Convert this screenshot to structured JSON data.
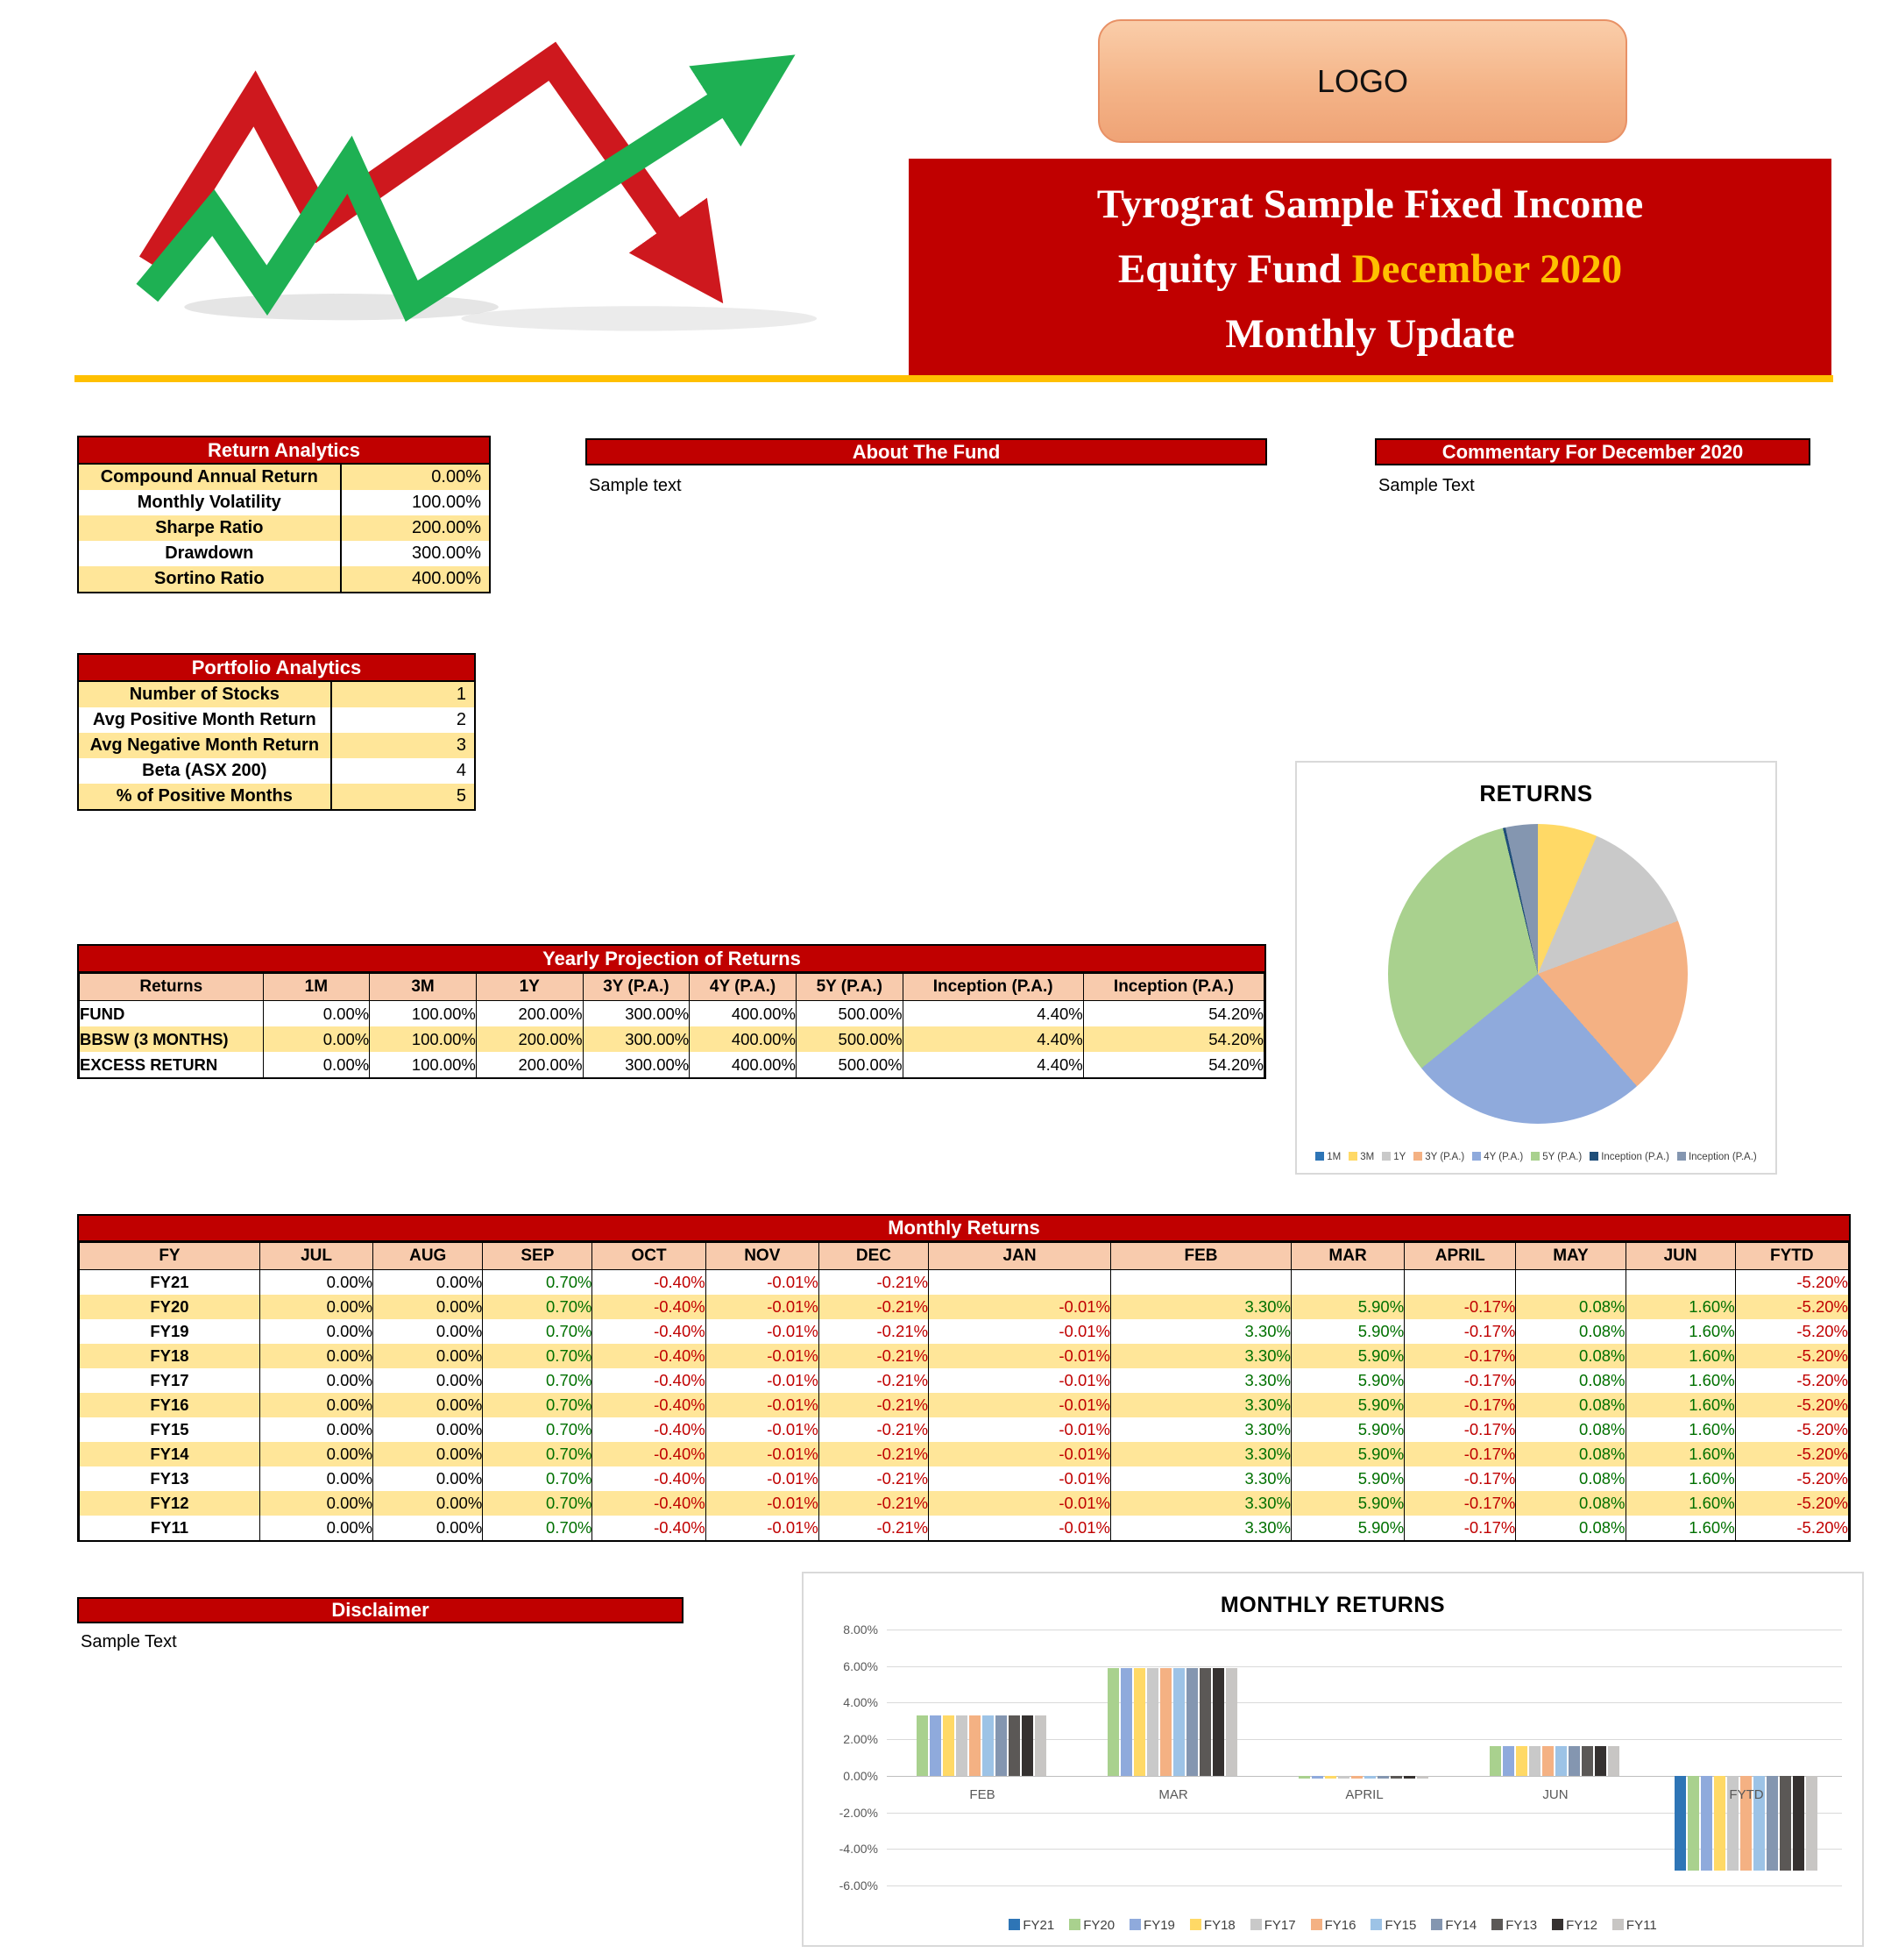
{
  "header": {
    "logo_label": "LOGO",
    "title_line1": "Tyrograt Sample Fixed Income",
    "title_line2_white": "Equity Fund",
    "title_line2_gold": "December 2020",
    "title_line3": "Monthly Update"
  },
  "colors": {
    "accent_red": "#C00000",
    "gold": "#FFC000",
    "row_yellow": "#FFE699",
    "header_peach": "#F8CBAD",
    "positive_value": "#007000",
    "negative_value": "#C00000",
    "logo_fill": "#F4B488",
    "logo_border": "#E89166"
  },
  "return_analytics": {
    "title": "Return Analytics",
    "rows": [
      [
        "Compound Annual Return",
        "0.00%"
      ],
      [
        "Monthly Volatility",
        "100.00%"
      ],
      [
        "Sharpe Ratio",
        "200.00%"
      ],
      [
        "Drawdown",
        "300.00%"
      ],
      [
        "Sortino Ratio",
        "400.00%"
      ]
    ]
  },
  "about": {
    "title": "About The Fund",
    "body": "Sample text"
  },
  "commentary": {
    "title": "Commentary For December 2020",
    "body": "Sample Text"
  },
  "portfolio_analytics": {
    "title": "Portfolio Analytics",
    "rows": [
      [
        "Number of Stocks",
        "1"
      ],
      [
        "Avg Positive Month Return",
        "2"
      ],
      [
        "Avg Negative Month Return",
        "3"
      ],
      [
        "Beta (ASX 200)",
        "4"
      ],
      [
        "% of Positive Months",
        "5"
      ]
    ]
  },
  "yearly_projection": {
    "title": "Yearly Projection of Returns",
    "columns": [
      "Returns",
      "1M",
      "3M",
      "1Y",
      "3Y (P.A.)",
      "4Y (P.A.)",
      "5Y (P.A.)",
      "Inception (P.A.)",
      "Inception (P.A.)"
    ],
    "rows": [
      {
        "label": "FUND",
        "values": [
          "0.00%",
          "100.00%",
          "200.00%",
          "300.00%",
          "400.00%",
          "500.00%",
          "4.40%",
          "54.20%"
        ]
      },
      {
        "label": "BBSW (3 MONTHS)",
        "values": [
          "0.00%",
          "100.00%",
          "200.00%",
          "300.00%",
          "400.00%",
          "500.00%",
          "4.40%",
          "54.20%"
        ]
      },
      {
        "label": "EXCESS RETURN",
        "values": [
          "0.00%",
          "100.00%",
          "200.00%",
          "300.00%",
          "400.00%",
          "500.00%",
          "4.40%",
          "54.20%"
        ]
      }
    ]
  },
  "monthly_returns_table": {
    "title": "Monthly Returns",
    "columns": [
      "FY",
      "JUL",
      "AUG",
      "SEP",
      "OCT",
      "NOV",
      "DEC",
      "JAN",
      "FEB",
      "MAR",
      "APRIL",
      "MAY",
      "JUN",
      "FYTD"
    ],
    "rows": [
      {
        "fy": "FY21",
        "values": [
          "0.00%",
          "0.00%",
          "0.70%",
          "-0.40%",
          "-0.01%",
          "-0.21%",
          "",
          "",
          "",
          "",
          "",
          "",
          "-5.20%"
        ]
      },
      {
        "fy": "FY20",
        "values": [
          "0.00%",
          "0.00%",
          "0.70%",
          "-0.40%",
          "-0.01%",
          "-0.21%",
          "-0.01%",
          "3.30%",
          "5.90%",
          "-0.17%",
          "0.08%",
          "1.60%",
          "-5.20%"
        ]
      },
      {
        "fy": "FY19",
        "values": [
          "0.00%",
          "0.00%",
          "0.70%",
          "-0.40%",
          "-0.01%",
          "-0.21%",
          "-0.01%",
          "3.30%",
          "5.90%",
          "-0.17%",
          "0.08%",
          "1.60%",
          "-5.20%"
        ]
      },
      {
        "fy": "FY18",
        "values": [
          "0.00%",
          "0.00%",
          "0.70%",
          "-0.40%",
          "-0.01%",
          "-0.21%",
          "-0.01%",
          "3.30%",
          "5.90%",
          "-0.17%",
          "0.08%",
          "1.60%",
          "-5.20%"
        ]
      },
      {
        "fy": "FY17",
        "values": [
          "0.00%",
          "0.00%",
          "0.70%",
          "-0.40%",
          "-0.01%",
          "-0.21%",
          "-0.01%",
          "3.30%",
          "5.90%",
          "-0.17%",
          "0.08%",
          "1.60%",
          "-5.20%"
        ]
      },
      {
        "fy": "FY16",
        "values": [
          "0.00%",
          "0.00%",
          "0.70%",
          "-0.40%",
          "-0.01%",
          "-0.21%",
          "-0.01%",
          "3.30%",
          "5.90%",
          "-0.17%",
          "0.08%",
          "1.60%",
          "-5.20%"
        ]
      },
      {
        "fy": "FY15",
        "values": [
          "0.00%",
          "0.00%",
          "0.70%",
          "-0.40%",
          "-0.01%",
          "-0.21%",
          "-0.01%",
          "3.30%",
          "5.90%",
          "-0.17%",
          "0.08%",
          "1.60%",
          "-5.20%"
        ]
      },
      {
        "fy": "FY14",
        "values": [
          "0.00%",
          "0.00%",
          "0.70%",
          "-0.40%",
          "-0.01%",
          "-0.21%",
          "-0.01%",
          "3.30%",
          "5.90%",
          "-0.17%",
          "0.08%",
          "1.60%",
          "-5.20%"
        ]
      },
      {
        "fy": "FY13",
        "values": [
          "0.00%",
          "0.00%",
          "0.70%",
          "-0.40%",
          "-0.01%",
          "-0.21%",
          "-0.01%",
          "3.30%",
          "5.90%",
          "-0.17%",
          "0.08%",
          "1.60%",
          "-5.20%"
        ]
      },
      {
        "fy": "FY12",
        "values": [
          "0.00%",
          "0.00%",
          "0.70%",
          "-0.40%",
          "-0.01%",
          "-0.21%",
          "-0.01%",
          "3.30%",
          "5.90%",
          "-0.17%",
          "0.08%",
          "1.60%",
          "-5.20%"
        ]
      },
      {
        "fy": "FY11",
        "values": [
          "0.00%",
          "0.00%",
          "0.70%",
          "-0.40%",
          "-0.01%",
          "-0.21%",
          "-0.01%",
          "3.30%",
          "5.90%",
          "-0.17%",
          "0.08%",
          "1.60%",
          "-5.20%"
        ]
      }
    ]
  },
  "disclaimer": {
    "title": "Disclaimer",
    "body": "Sample Text"
  },
  "chart_data": [
    {
      "type": "pie",
      "title": "RETURNS",
      "labels": [
        "1M",
        "3M",
        "1Y",
        "3Y (P.A.)",
        "4Y (P.A.)",
        "5Y (P.A.)",
        "Inception (P.A.)",
        "Inception (P.A.)"
      ],
      "values": [
        0,
        100,
        200,
        300,
        400,
        500,
        4.4,
        54.2
      ],
      "colors": [
        "#2E75B6",
        "#FFD966",
        "#C9C9C9",
        "#F4B183",
        "#8FAADC",
        "#A9D18E",
        "#1F4E79",
        "#8496B0"
      ],
      "legend_position": "bottom"
    },
    {
      "type": "bar",
      "title": "MONTHLY RETURNS",
      "categories": [
        "FEB",
        "MAR",
        "APRIL",
        "JUN",
        "FYTD"
      ],
      "series": [
        {
          "name": "FY21",
          "color": "#2E75B6",
          "values": [
            null,
            null,
            null,
            null,
            -5.2
          ]
        },
        {
          "name": "FY20",
          "color": "#A9D18E",
          "values": [
            3.3,
            5.9,
            -0.17,
            1.6,
            -5.2
          ]
        },
        {
          "name": "FY19",
          "color": "#8FAADC",
          "values": [
            3.3,
            5.9,
            -0.17,
            1.6,
            -5.2
          ]
        },
        {
          "name": "FY18",
          "color": "#FFD966",
          "values": [
            3.3,
            5.9,
            -0.17,
            1.6,
            -5.2
          ]
        },
        {
          "name": "FY17",
          "color": "#C9C9C9",
          "values": [
            3.3,
            5.9,
            -0.17,
            1.6,
            -5.2
          ]
        },
        {
          "name": "FY16",
          "color": "#F4B183",
          "values": [
            3.3,
            5.9,
            -0.17,
            1.6,
            -5.2
          ]
        },
        {
          "name": "FY15",
          "color": "#9DC3E6",
          "values": [
            3.3,
            5.9,
            -0.17,
            1.6,
            -5.2
          ]
        },
        {
          "name": "FY14",
          "color": "#8496B0",
          "values": [
            3.3,
            5.9,
            -0.17,
            1.6,
            -5.2
          ]
        },
        {
          "name": "FY13",
          "color": "#5B5856",
          "values": [
            3.3,
            5.9,
            -0.17,
            1.6,
            -5.2
          ]
        },
        {
          "name": "FY12",
          "color": "#353130",
          "values": [
            3.3,
            5.9,
            -0.17,
            1.6,
            -5.2
          ]
        },
        {
          "name": "FY11",
          "color": "#C8C6C4",
          "values": [
            3.3,
            5.9,
            -0.17,
            1.6,
            -5.2
          ]
        }
      ],
      "ylim": [
        -6,
        8
      ],
      "ytick_step": 2,
      "grid": true,
      "legend_position": "bottom"
    }
  ]
}
